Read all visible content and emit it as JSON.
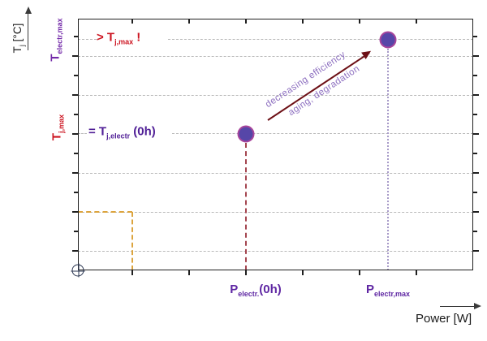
{
  "chart_data": {
    "type": "scatter",
    "title": "",
    "description": "Conceptual diagram of junction temperature versus electrical power: at P_electr.(0h) the device runs at T_j,electr(0h) = T_j,max; with decreasing efficiency, aging and degradation the operating point shifts to P_electr,max where the temperature exceeds T_j,max.",
    "x_axis": {
      "title": "Power [W]",
      "numeric_ticks": false,
      "tick_labels": [
        "P_electr.(0h)",
        "P_electr,max"
      ]
    },
    "y_axis": {
      "title": "T_j [°C]",
      "numeric_ticks": false,
      "tick_labels": [
        "T_j,max",
        "T_electr,max"
      ]
    },
    "grid": true,
    "legend": false,
    "points": [
      {
        "id": "operating-point-0h",
        "x": "P_electr.(0h)",
        "y": "T_j,max = T_j,electr (0h)",
        "x_frac": 0.425,
        "y_frac": 0.458
      },
      {
        "id": "operating-point-aged",
        "x": "P_electr,max",
        "y": "> T_j,max !",
        "x_frac": 0.784,
        "y_frac": 0.084
      }
    ],
    "trend_annotation": "decreasing efficiency / aging, degradation"
  },
  "labels": {
    "y_title": {
      "main": "T",
      "sub": "j",
      "unit": " [°C]"
    },
    "y_electr_max": {
      "main": "T",
      "sub": "electr,max"
    },
    "y_j_max": {
      "main": "T",
      "sub": "j,max"
    },
    "ann_over": {
      "prefix": "> T",
      "sub": "j,max",
      "suffix": " !"
    },
    "ann_eq": {
      "prefix": "= T",
      "sub": "j,electr",
      "suffix": " (0h)"
    },
    "arrow_line1": "decreasing efficiency",
    "arrow_line2": "aging,  degradation",
    "x_p0": {
      "main": "P",
      "sub": "electr.",
      "suffix": "(0h)"
    },
    "x_pmax": {
      "main": "P",
      "sub": "electr,max"
    },
    "x_title": "Power [W]"
  },
  "colors": {
    "axis": "#1f1f1f",
    "gridline": "#b9b9b9",
    "red_text": "#cc1420",
    "purple_text_dark": "#4f1e96",
    "purple_text": "#5f27a3",
    "purple_text_axis": "#7228a8",
    "trend_text": "#8d6fc0",
    "point_fill": "#5646a8",
    "point_border": "#a8459c",
    "trend_arrow": "#6d1016",
    "drop_line_red": "#a4454f",
    "drop_line_purple": "#a79ac8",
    "guide_orange": "#dca43e"
  }
}
